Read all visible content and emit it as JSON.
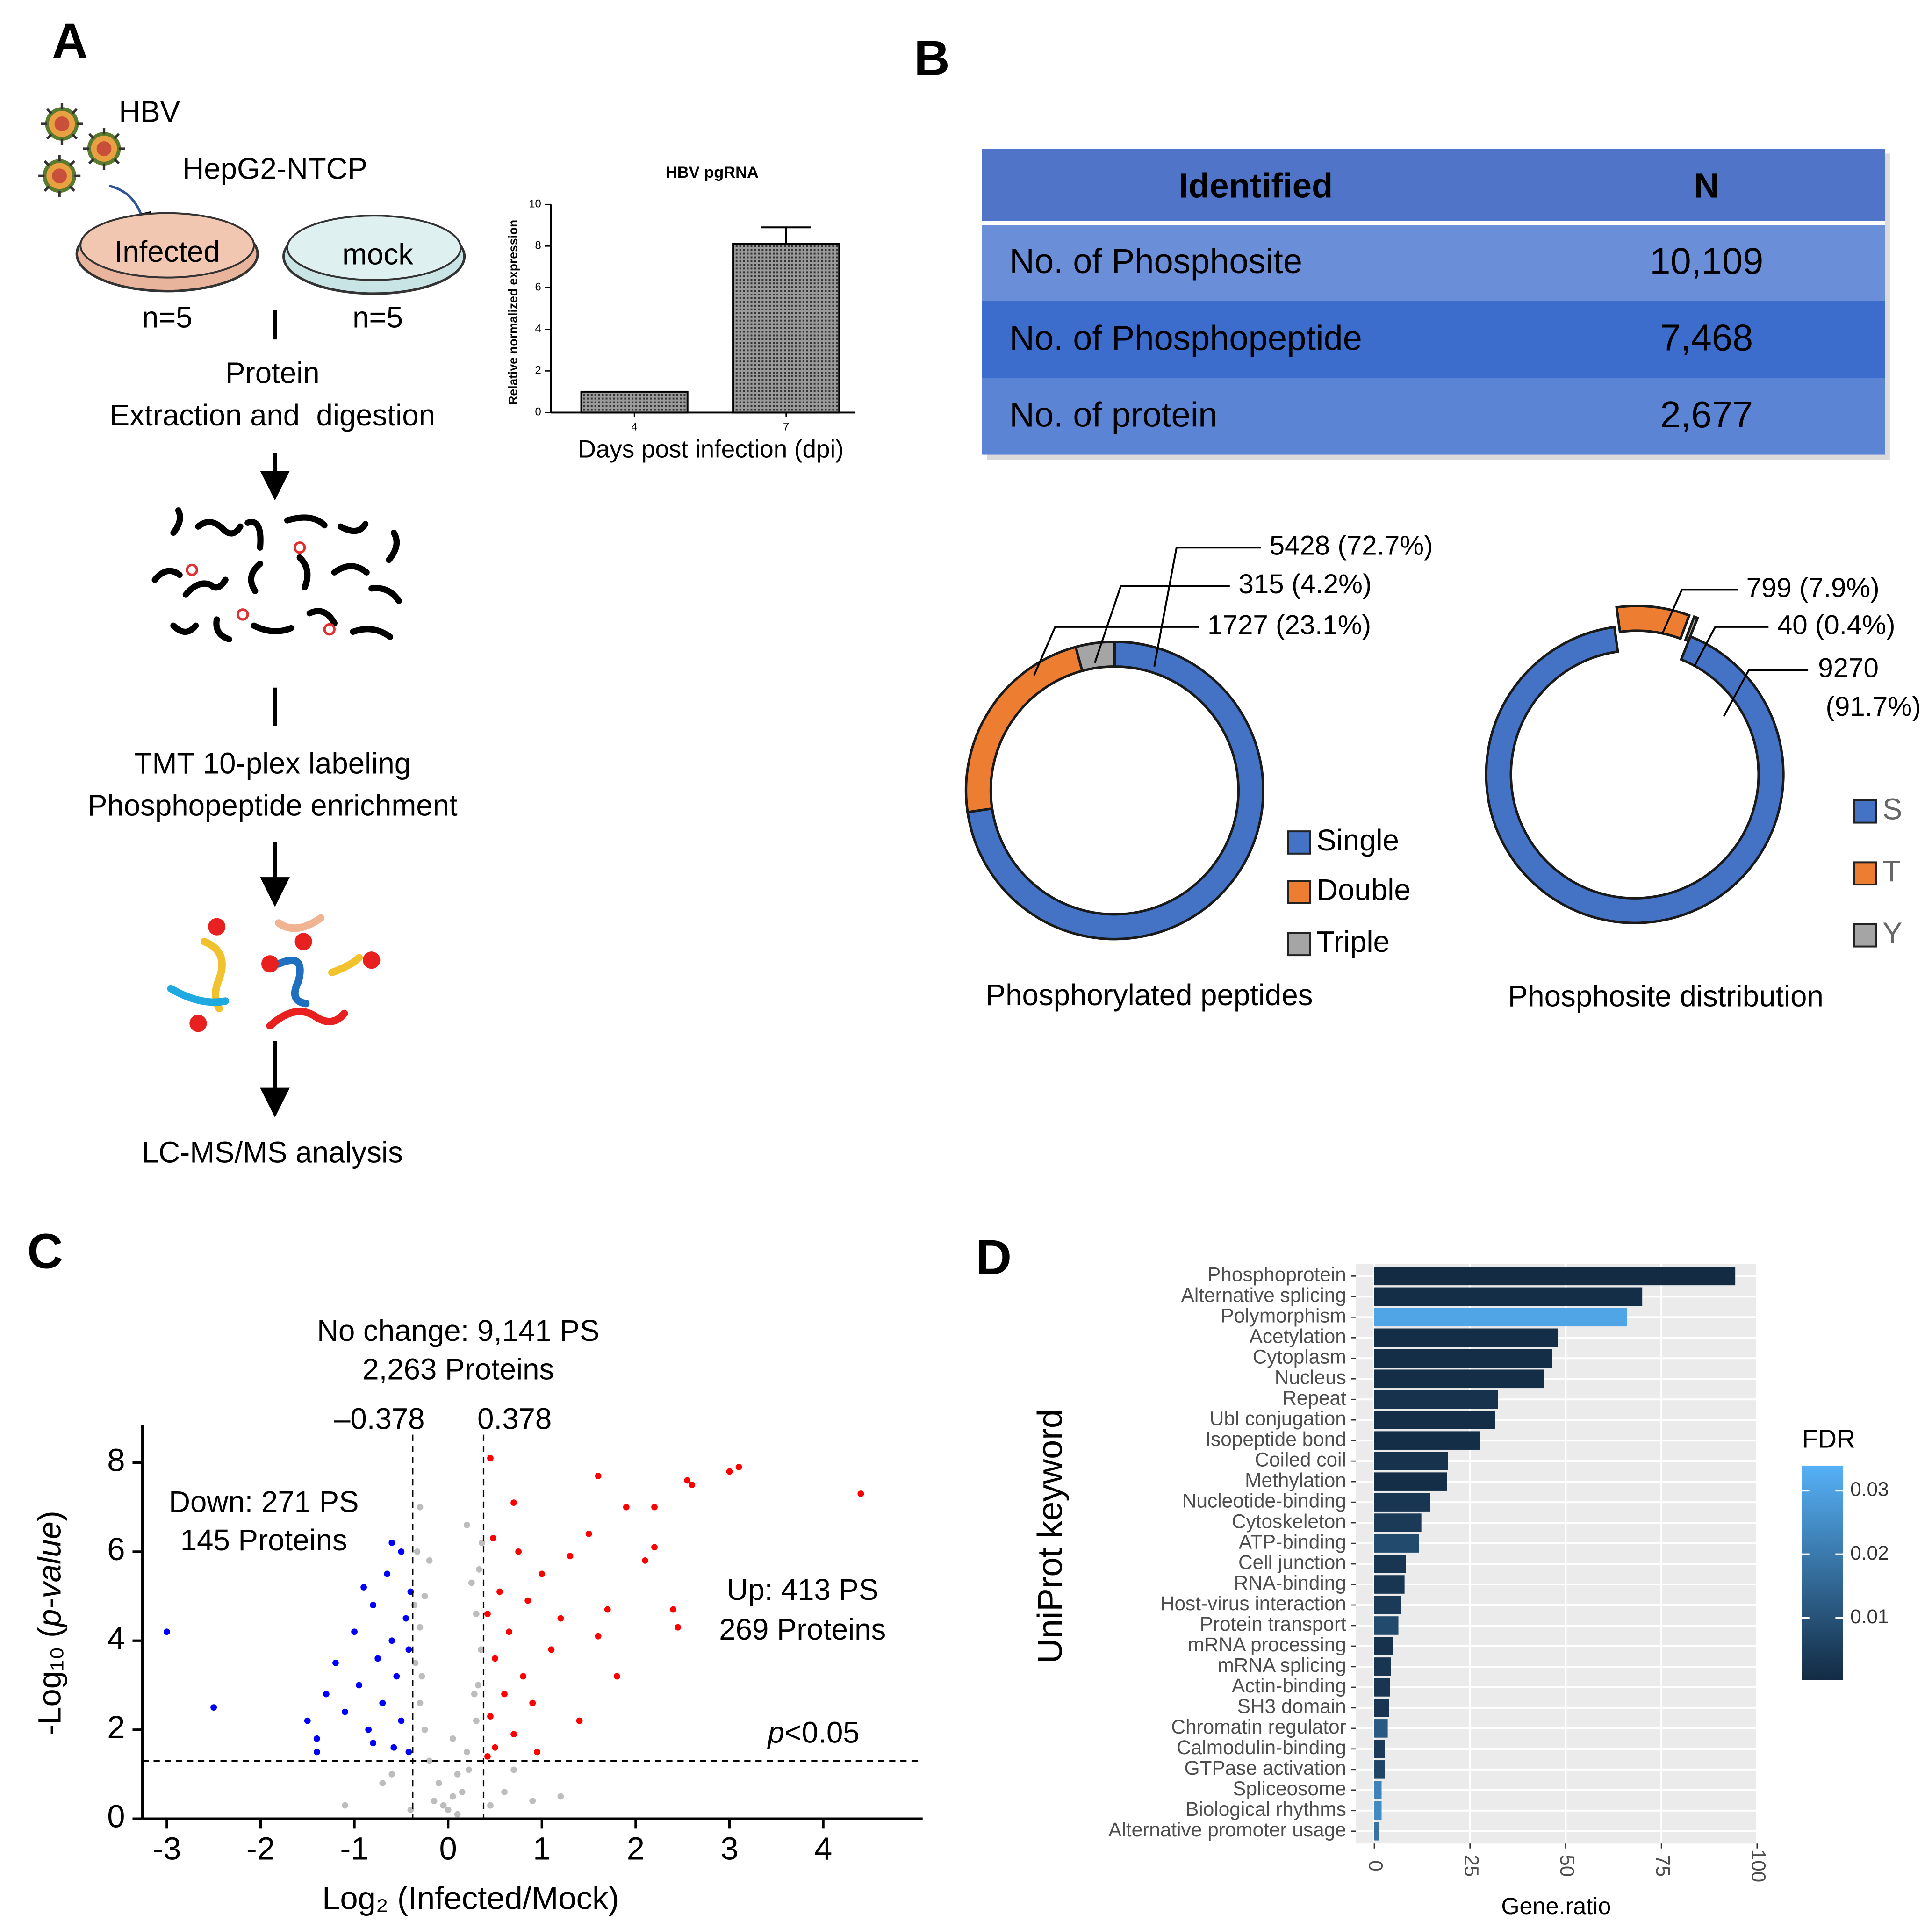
{
  "panel_labels": [
    "A",
    "B",
    "C",
    "D"
  ],
  "diagram": {
    "virus": "HBV",
    "cells": "HepG2-NTCP",
    "groups": [
      {
        "label": "Infected",
        "n": "n=5"
      },
      {
        "label": "mock",
        "n": "n=5"
      }
    ],
    "steps": [
      "Protein",
      "Extraction and  digestion",
      "TMT 10-plex labeling",
      "Phosphopeptide enrichment",
      "LC-MS/MS analysis"
    ]
  },
  "table": {
    "header": [
      "Identified",
      "N"
    ],
    "rows": [
      [
        "No. of Phosphosite",
        "10,109"
      ],
      [
        "No. of Phosphopeptide",
        "7,468"
      ],
      [
        "No. of protein",
        "2,677"
      ]
    ]
  },
  "chart_data": [
    {
      "type": "bar",
      "title": "HBV pgRNA",
      "x_label": "Days post infection (dpi)",
      "y_label": "Relative normalized expression",
      "categories": [
        "4",
        "7"
      ],
      "values": [
        1,
        8.1
      ],
      "errors": [
        null,
        0.8
      ],
      "color": "#9a9a9a",
      "ylim": [
        0,
        10
      ],
      "yticks": [
        0,
        2,
        4,
        6,
        8,
        10
      ]
    },
    {
      "type": "donut",
      "caption": "Phosphorylated peptides",
      "categories": [
        "Single",
        "Double",
        "Triple"
      ],
      "values": [
        5428,
        1727,
        315
      ],
      "value_labels": [
        "5428 (72.7%)",
        "1727 (23.1%)",
        "315 (4.2%)"
      ],
      "colors": [
        "#4472c4",
        "#ed7d31",
        "#a5a5a5"
      ],
      "start_angle": 0,
      "explode": false
    },
    {
      "type": "donut",
      "caption": "Phosphosite distribution",
      "categories": [
        "S",
        "T",
        "Y"
      ],
      "values": [
        9270,
        799,
        40
      ],
      "value_labels": [
        "9270 (91.7%)",
        "799 (7.9%)",
        "40 (0.4%)"
      ],
      "colors": [
        "#4472c4",
        "#ed7d31",
        "#a5a5a5"
      ],
      "start_angle": 22,
      "explode": true
    },
    {
      "type": "scatter",
      "x_label": "Log₂ (Infected/Mock)",
      "y_label": "-Log₁₀ (p-value)",
      "annotations": [
        "No change: 9,141 PS",
        "2,263 Proteins",
        "Down: 271 PS",
        "145 Proteins",
        "Up: 413 PS",
        "269 Proteins"
      ],
      "vlines": [
        {
          "value": -0.378,
          "label": "–0.378"
        },
        {
          "value": 0.378,
          "label": "0.378"
        }
      ],
      "hline": {
        "value": 1.3,
        "label": "p<0.05"
      },
      "xlim": [
        -3.26,
        5.06
      ],
      "ylim": [
        0,
        8.85
      ],
      "xticks": [
        -3,
        -2,
        -1,
        0,
        1,
        2,
        3,
        4
      ],
      "yticks": [
        0,
        2,
        4,
        6,
        8
      ],
      "series": [
        {
          "color": "#bdbdbd",
          "x": [
            0,
            0.05,
            -0.1,
            0.1,
            -0.2,
            0.2,
            -0.25,
            0.3,
            -0.3,
            0.32,
            -0.35,
            0.35,
            -0.3,
            0.3,
            -0.25,
            0.25,
            -0.2,
            0.36,
            -0.33,
            0.15,
            -0.15,
            0.22,
            -0.05,
            0.6,
            -0.7,
            0.9,
            -1.1,
            1.2,
            0.7,
            -0.6,
            0.28,
            -0.28,
            0.33,
            -0.36,
            0.1,
            -0.4,
            0.45,
            0.2,
            -0.3,
            0.05
          ],
          "y": [
            0.2,
            0.5,
            0.8,
            1.0,
            1.3,
            1.5,
            2.0,
            2.2,
            2.6,
            3.0,
            3.5,
            3.8,
            4.3,
            4.6,
            5.0,
            5.3,
            5.8,
            6.2,
            6.0,
            0.6,
            0.4,
            1.1,
            0.3,
            0.6,
            0.8,
            0.4,
            0.3,
            0.5,
            1.1,
            1.0,
            2.8,
            3.2,
            5.6,
            4.8,
            0.1,
            0.2,
            0.3,
            6.6,
            7.0,
            1.8
          ]
        },
        {
          "color": "#0000ff",
          "x": [
            -3,
            -2.5,
            -1.5,
            -1.4,
            -1.3,
            -1.2,
            -1.1,
            -1,
            -0.95,
            -0.9,
            -0.85,
            -0.8,
            -0.75,
            -0.7,
            -0.65,
            -0.6,
            -0.58,
            -0.55,
            -0.5,
            -0.5,
            -0.45,
            -0.42,
            -0.42,
            -0.4,
            -0.6,
            -1.4,
            -0.8
          ],
          "y": [
            4.2,
            2.5,
            2.2,
            1.8,
            2.8,
            3.5,
            2.4,
            4.2,
            3.0,
            5.2,
            2.0,
            4.8,
            3.6,
            2.6,
            5.5,
            4.0,
            1.6,
            3.2,
            6.0,
            2.2,
            4.5,
            1.5,
            3.8,
            5.1,
            6.2,
            1.5,
            1.7
          ]
        },
        {
          "color": "#ff0000",
          "x": [
            4.4,
            3.1,
            3.0,
            2.6,
            2.55,
            2.2,
            1.9,
            1.6,
            2.2,
            2.1,
            1.5,
            2.4,
            2.45,
            1.7,
            0.45,
            1.6,
            1.3,
            1.2,
            1.1,
            1.0,
            0.9,
            0.85,
            0.8,
            0.75,
            0.7,
            0.65,
            0.6,
            0.55,
            0.5,
            0.5,
            0.48,
            0.45,
            0.42,
            0.42,
            1.4,
            0.95,
            1.8,
            0.7
          ],
          "y": [
            7.3,
            7.9,
            7.8,
            7.5,
            7.6,
            7.0,
            7.0,
            7.7,
            6.1,
            5.8,
            6.4,
            4.7,
            4.3,
            4.7,
            8.1,
            4.1,
            5.9,
            4.5,
            3.8,
            5.5,
            2.6,
            4.9,
            3.2,
            6.0,
            1.9,
            4.2,
            2.8,
            5.1,
            1.6,
            3.6,
            6.3,
            2.3,
            4.6,
            1.4,
            2.2,
            1.5,
            3.2,
            7.1
          ]
        }
      ]
    },
    {
      "type": "hbar",
      "x_label": "Gene.ratio",
      "y_label": "UniProt keyword",
      "categories": [
        "Phosphoprotein",
        "Alternative splicing",
        "Polymorphism",
        "Acetylation",
        "Cytoplasm",
        "Nucleus",
        "Repeat",
        "Ubl conjugation",
        "Isopeptide bond",
        "Coiled coil",
        "Methylation",
        "Nucleotide-binding",
        "Cytoskeleton",
        "ATP-binding",
        "Cell junction",
        "RNA-binding",
        "Host-virus interaction",
        "Protein transport",
        "mRNA processing",
        "mRNA splicing",
        "Actin-binding",
        "SH3 domain",
        "Chromatin regulator",
        "Calmodulin-binding",
        "GTPase activation",
        "Spliceosome",
        "Biological rhythms",
        "Alternative promoter usage"
      ],
      "values": [
        94.3,
        70,
        66,
        48,
        46.5,
        44.3,
        32.3,
        31.6,
        27.5,
        19.3,
        19,
        14.6,
        12.3,
        11.7,
        8.2,
        7.9,
        7,
        6.3,
        5,
        4.4,
        4.1,
        3.8,
        3.5,
        2.8,
        2.8,
        1.9,
        1.9,
        1.3
      ],
      "fdr": [
        0.0005,
        0.001,
        0.031,
        0.001,
        0.001,
        0.001,
        0.002,
        0.001,
        0.001,
        0.002,
        0.001,
        0.003,
        0.004,
        0.008,
        0.003,
        0.003,
        0.004,
        0.008,
        0.002,
        0.003,
        0.003,
        0.003,
        0.012,
        0.004,
        0.007,
        0.022,
        0.024,
        0.018
      ],
      "xlim": [
        -4.75,
        99.75
      ],
      "xticks": [
        0,
        25,
        50,
        75,
        100
      ],
      "grid": true,
      "colorbar": {
        "title": "FDR",
        "lim": [
          0.0003,
          0.0339
        ],
        "ticks": [
          0.01,
          0.02,
          0.03
        ],
        "low": "#132b43",
        "high": "#56b1f7"
      }
    }
  ]
}
